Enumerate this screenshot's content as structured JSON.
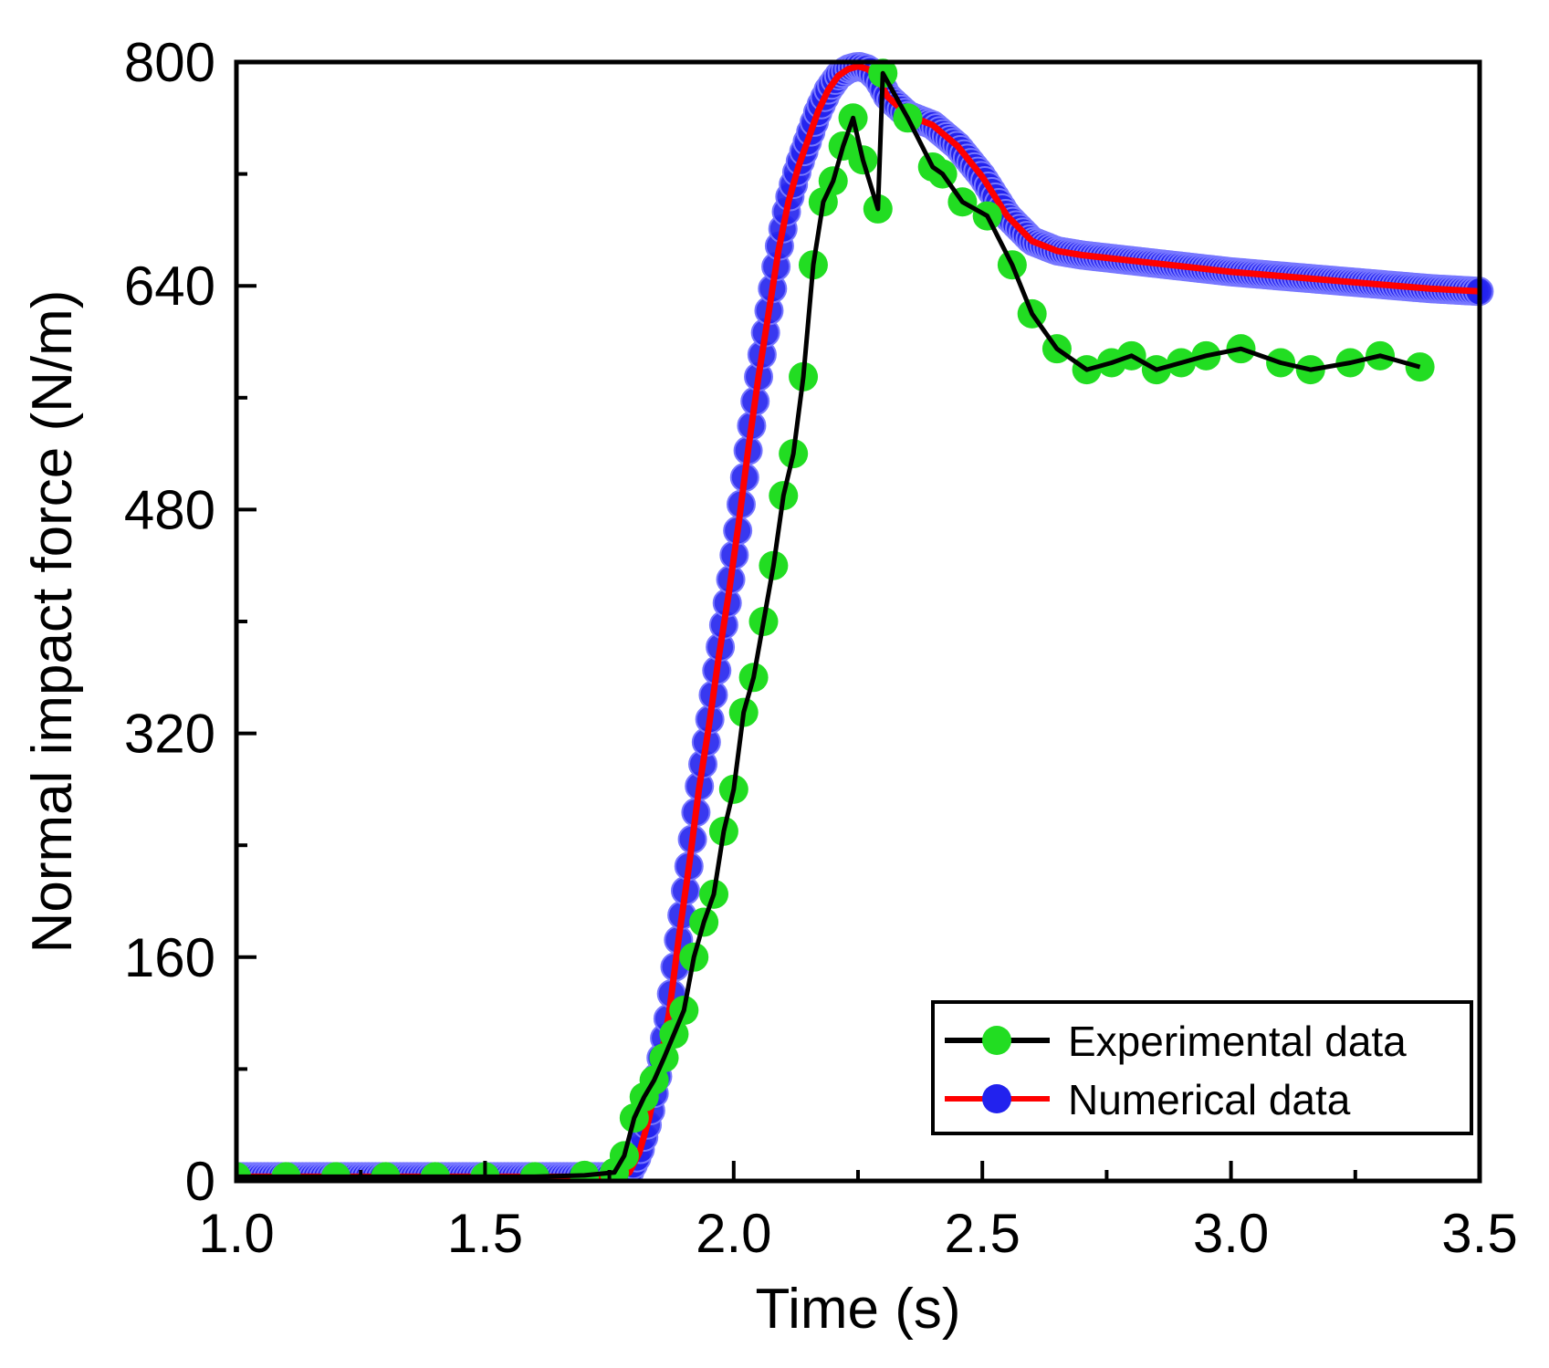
{
  "chart_data": {
    "type": "line",
    "title": "",
    "xlabel": "Time (s)",
    "ylabel": "Normal impact force (N/m)",
    "xlim": [
      1.0,
      3.5
    ],
    "ylim": [
      0,
      800
    ],
    "x_ticks": [
      1.0,
      1.5,
      2.0,
      2.5,
      3.0,
      3.5
    ],
    "x_tick_labels": [
      "1.0",
      "1.5",
      "2.0",
      "2.5",
      "3.0",
      "3.5"
    ],
    "y_ticks": [
      0,
      160,
      320,
      480,
      640,
      800
    ],
    "y_tick_labels": [
      "0",
      "160",
      "320",
      "480",
      "640",
      "800"
    ],
    "grid": false,
    "legend_position": "bottom-right",
    "series": [
      {
        "name": "Experimental data",
        "line_color": "#000000",
        "marker_color": "#22dd22",
        "x": [
          1.0,
          1.1,
          1.2,
          1.3,
          1.4,
          1.5,
          1.6,
          1.7,
          1.76,
          1.78,
          1.8,
          1.82,
          1.84,
          1.86,
          1.88,
          1.9,
          1.92,
          1.94,
          1.96,
          1.98,
          2.0,
          2.02,
          2.04,
          2.06,
          2.08,
          2.1,
          2.12,
          2.14,
          2.16,
          2.18,
          2.2,
          2.22,
          2.24,
          2.26,
          2.29,
          2.3,
          2.35,
          2.4,
          2.42,
          2.46,
          2.51,
          2.56,
          2.6,
          2.65,
          2.71,
          2.76,
          2.8,
          2.85,
          2.9,
          2.95,
          3.02,
          3.1,
          3.16,
          3.24,
          3.3,
          3.38
        ],
        "y": [
          3,
          3,
          3,
          3,
          3,
          3,
          3,
          4,
          6,
          18,
          45,
          60,
          72,
          88,
          105,
          122,
          160,
          185,
          205,
          250,
          280,
          335,
          360,
          400,
          440,
          490,
          520,
          575,
          655,
          700,
          715,
          740,
          760,
          730,
          695,
          792,
          760,
          725,
          720,
          700,
          690,
          655,
          620,
          595,
          580,
          585,
          590,
          580,
          585,
          590,
          595,
          585,
          580,
          585,
          590,
          582
        ]
      },
      {
        "name": "Numerical data",
        "line_color": "#ff0000",
        "marker_color": "#2222ee",
        "x": [
          1.0,
          1.1,
          1.2,
          1.3,
          1.4,
          1.5,
          1.6,
          1.7,
          1.77,
          1.79,
          1.81,
          1.83,
          1.85,
          1.87,
          1.89,
          1.91,
          1.93,
          1.95,
          1.97,
          1.99,
          2.01,
          2.03,
          2.05,
          2.07,
          2.09,
          2.11,
          2.13,
          2.15,
          2.17,
          2.19,
          2.21,
          2.23,
          2.25,
          2.27,
          2.29,
          2.31,
          2.35,
          2.4,
          2.45,
          2.5,
          2.55,
          2.6,
          2.65,
          2.7,
          2.8,
          2.9,
          3.0,
          3.1,
          3.2,
          3.3,
          3.4,
          3.5
        ],
        "y": [
          3,
          3,
          3,
          3,
          3,
          3,
          3,
          3,
          3,
          6,
          20,
          45,
          80,
          120,
          175,
          225,
          280,
          325,
          375,
          420,
          470,
          525,
          575,
          620,
          665,
          700,
          725,
          745,
          765,
          780,
          790,
          795,
          797,
          795,
          788,
          775,
          762,
          755,
          740,
          718,
          690,
          672,
          665,
          662,
          658,
          654,
          650,
          647,
          644,
          641,
          638,
          636
        ]
      }
    ]
  }
}
